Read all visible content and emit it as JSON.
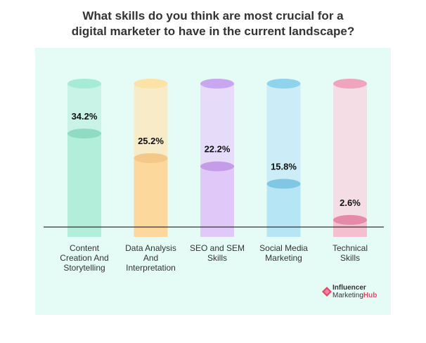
{
  "chart_data": {
    "type": "bar",
    "title_lines": [
      "What skills do you think are most crucial for a",
      "digital marketer to have in the current landscape?"
    ],
    "categories": [
      [
        "Content",
        "Creation And",
        "Storytelling"
      ],
      [
        "Data Analysis",
        "And",
        "Interpretation"
      ],
      [
        "SEO and SEM",
        "Skills"
      ],
      [
        "Social Media",
        "Marketing"
      ],
      [
        "Technical",
        "Skills"
      ]
    ],
    "values": [
      34.2,
      25.2,
      22.2,
      15.8,
      2.6
    ],
    "value_labels": [
      "34.2%",
      "25.2%",
      "22.2%",
      "15.8%",
      "2.6%"
    ],
    "ylim": [
      0,
      50
    ],
    "grid": false,
    "legend": "none",
    "colors": [
      {
        "fill": "#b3eedb",
        "track": "#c9f3e6",
        "top": "#a6ebd6",
        "cap": "#8fdcc3"
      },
      {
        "fill": "#fdd89c",
        "track": "#f7ebc8",
        "top": "#fde2a8",
        "cap": "#f3c889"
      },
      {
        "fill": "#e0c8f8",
        "track": "#e6dcfa",
        "top": "#c9a6f0",
        "cap": "#c49ce8"
      },
      {
        "fill": "#b6e6f6",
        "track": "#ccedf7",
        "top": "#8fd3ec",
        "cap": "#7fc7e2"
      },
      {
        "fill": "#f6bfd0",
        "track": "#f4dde4",
        "top": "#eea5bd",
        "cap": "#e58aa8"
      }
    ]
  },
  "logo": {
    "line1": "Influencer",
    "line2a": "Marketing",
    "line2b": "Hub"
  }
}
